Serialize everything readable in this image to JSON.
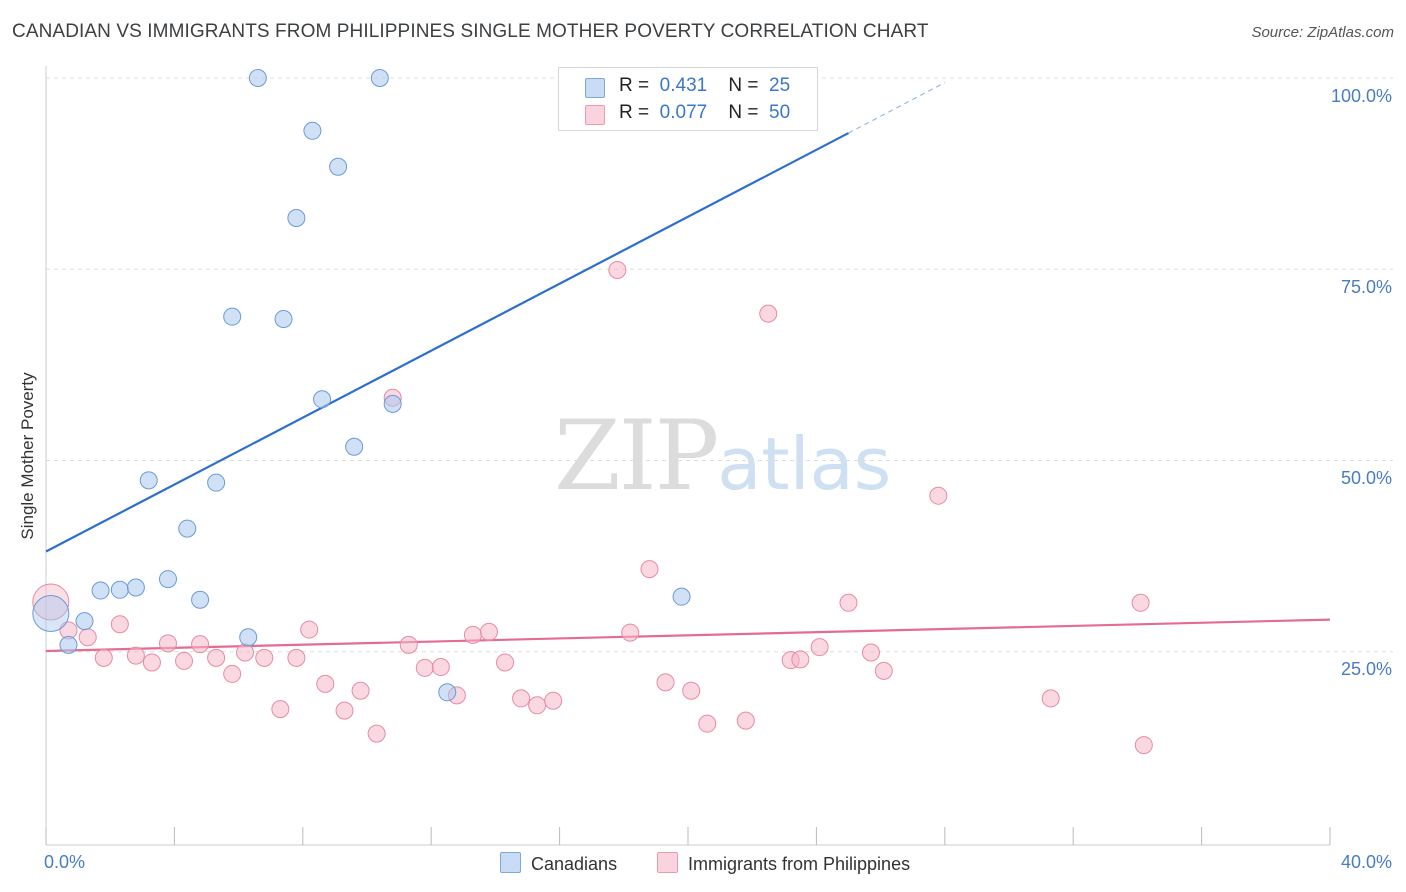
{
  "header": {
    "title": "CANADIAN VS IMMIGRANTS FROM PHILIPPINES SINGLE MOTHER POVERTY CORRELATION CHART",
    "source": "Source: ZipAtlas.com"
  },
  "watermark": {
    "zip": "ZIP",
    "atlas": "atlas"
  },
  "legend": {
    "rows": [
      {
        "r_label": "R =",
        "r_value": "0.431",
        "n_label": "N =",
        "n_value": "25",
        "color": "#a9c8ee"
      },
      {
        "r_label": "R =",
        "r_value": "0.077",
        "n_label": "N =",
        "n_value": "50",
        "color": "#f5b8c9"
      }
    ]
  },
  "bottom_legend": {
    "canadians": "Canadians",
    "philippines": "Immigrants from Philippines"
  },
  "chart_data": {
    "type": "scatter",
    "xlabel": "",
    "ylabel": "Single Mother Poverty",
    "xlim": [
      0,
      40
    ],
    "ylim": [
      0,
      100
    ],
    "x_tick_labels": [
      "0.0%",
      "40.0%"
    ],
    "y_tick_labels": [
      "25.0%",
      "50.0%",
      "75.0%",
      "100.0%"
    ],
    "y_ticks": [
      25,
      50,
      75,
      100
    ],
    "grid": true,
    "series": [
      {
        "name": "Canadians",
        "color": "#a9c8ee",
        "stroke": "#6a9bd8",
        "line_color": "#2d6fce",
        "trend": {
          "x0": 0,
          "y0": 38.1,
          "x1": 25.0,
          "y1": 92.8,
          "x_dash_end": 28.0,
          "y_dash_end": 99.4
        },
        "points": [
          [
            0.15,
            30.0
          ],
          [
            0.7,
            25.9
          ],
          [
            1.2,
            29.0
          ],
          [
            1.7,
            33.0
          ],
          [
            2.3,
            33.1
          ],
          [
            2.8,
            33.4
          ],
          [
            3.2,
            47.4
          ],
          [
            3.8,
            34.5
          ],
          [
            4.4,
            41.1
          ],
          [
            4.8,
            31.8
          ],
          [
            5.3,
            47.1
          ],
          [
            5.8,
            68.8
          ],
          [
            6.3,
            26.9
          ],
          [
            6.6,
            100.0
          ],
          [
            7.4,
            68.5
          ],
          [
            7.8,
            81.7
          ],
          [
            8.3,
            93.1
          ],
          [
            8.6,
            58.0
          ],
          [
            9.1,
            88.4
          ],
          [
            9.6,
            51.8
          ],
          [
            10.4,
            100.0
          ],
          [
            10.8,
            57.4
          ],
          [
            12.5,
            19.7
          ],
          [
            19.8,
            32.2
          ],
          [
            20.8,
            100.0
          ]
        ]
      },
      {
        "name": "Immigrants from Philippines",
        "color": "#f5b8c9",
        "stroke": "#e88aa6",
        "line_color": "#e46b92",
        "trend": {
          "x0": 0,
          "y0": 25.1,
          "x1": 40,
          "y1": 29.2
        },
        "points": [
          [
            0.15,
            31.5
          ],
          [
            0.7,
            27.8
          ],
          [
            1.3,
            26.9
          ],
          [
            1.8,
            24.2
          ],
          [
            2.3,
            28.6
          ],
          [
            2.8,
            24.5
          ],
          [
            3.3,
            23.6
          ],
          [
            3.8,
            26.1
          ],
          [
            4.3,
            23.8
          ],
          [
            4.8,
            26.0
          ],
          [
            5.3,
            24.2
          ],
          [
            5.8,
            22.1
          ],
          [
            6.2,
            24.9
          ],
          [
            6.8,
            24.2
          ],
          [
            7.3,
            17.5
          ],
          [
            7.8,
            24.2
          ],
          [
            8.2,
            27.9
          ],
          [
            8.7,
            20.8
          ],
          [
            9.3,
            17.3
          ],
          [
            9.8,
            19.9
          ],
          [
            10.3,
            14.3
          ],
          [
            10.8,
            58.2
          ],
          [
            11.3,
            25.9
          ],
          [
            11.8,
            22.9
          ],
          [
            12.3,
            23.0
          ],
          [
            12.8,
            19.3
          ],
          [
            13.3,
            27.2
          ],
          [
            13.8,
            27.6
          ],
          [
            14.3,
            23.6
          ],
          [
            14.8,
            18.9
          ],
          [
            15.3,
            18.0
          ],
          [
            15.8,
            18.6
          ],
          [
            17.8,
            74.9
          ],
          [
            18.2,
            27.5
          ],
          [
            18.8,
            35.8
          ],
          [
            19.3,
            21.0
          ],
          [
            20.1,
            19.9
          ],
          [
            20.6,
            15.6
          ],
          [
            21.8,
            16.0
          ],
          [
            22.5,
            69.2
          ],
          [
            23.2,
            23.9
          ],
          [
            23.5,
            24.0
          ],
          [
            24.1,
            25.6
          ],
          [
            25.0,
            31.4
          ],
          [
            25.7,
            24.9
          ],
          [
            26.1,
            22.5
          ],
          [
            27.8,
            45.4
          ],
          [
            31.3,
            18.9
          ],
          [
            34.1,
            31.4
          ],
          [
            34.2,
            12.8
          ]
        ]
      }
    ]
  }
}
